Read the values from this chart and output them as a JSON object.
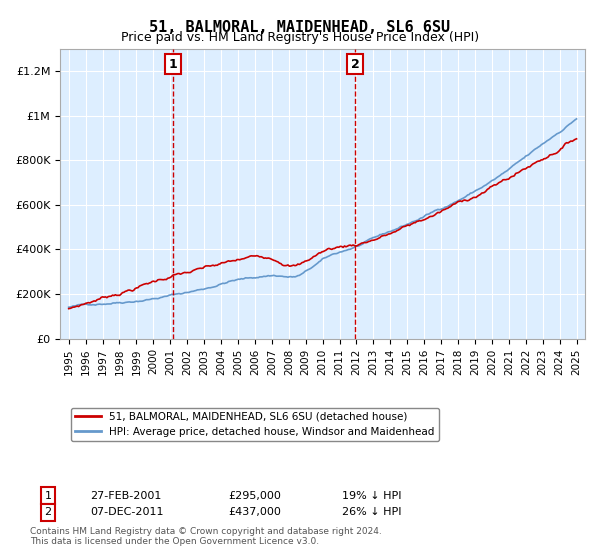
{
  "title": "51, BALMORAL, MAIDENHEAD, SL6 6SU",
  "subtitle": "Price paid vs. HM Land Registry's House Price Index (HPI)",
  "legend_line1": "51, BALMORAL, MAIDENHEAD, SL6 6SU (detached house)",
  "legend_line2": "HPI: Average price, detached house, Windsor and Maidenhead",
  "footnote": "Contains HM Land Registry data © Crown copyright and database right 2024.\nThis data is licensed under the Open Government Licence v3.0.",
  "annotation1": {
    "label": "1",
    "date": "27-FEB-2001",
    "price": "£295,000",
    "info": "19% ↓ HPI"
  },
  "annotation2": {
    "label": "2",
    "date": "07-DEC-2011",
    "price": "£437,000",
    "info": "26% ↓ HPI"
  },
  "price_color": "#cc0000",
  "hpi_color": "#6699cc",
  "background_color": "#ddeeff",
  "plot_bg_color": "#ddeeff",
  "ylim": [
    0,
    1300000
  ],
  "yticks": [
    0,
    200000,
    400000,
    600000,
    800000,
    1000000,
    1200000
  ],
  "ytick_labels": [
    "£0",
    "£200K",
    "£400K",
    "£600K",
    "£800K",
    "£1M",
    "£1.2M"
  ],
  "sale1_year": 2001.15,
  "sale1_price": 295000,
  "sale2_year": 2011.92,
  "sale2_price": 437000
}
